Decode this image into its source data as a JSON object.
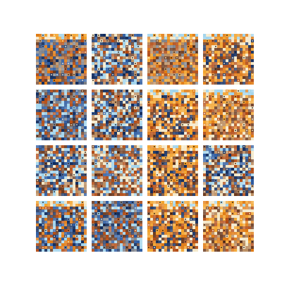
{
  "figure": {
    "rows": 4,
    "cols": 4,
    "background": "#ffffff",
    "palette": {
      "navy": "#0f2a5c",
      "blue": "#2b5aa0",
      "sky": "#9fd3ec",
      "cream": "#f3e6c4",
      "tan": "#b98a5c",
      "brown": "#6b3a1f",
      "rust": "#b24a12",
      "orange": "#e07a12",
      "amber": "#f2a22a",
      "gray": "#7a7e86"
    },
    "samples": [
      {
        "tone": "warm-top-band-blue-mix"
      },
      {
        "tone": "sky-blue-brown"
      },
      {
        "tone": "orange-band-brown"
      },
      {
        "tone": "orange-dominant"
      },
      {
        "tone": "blue-dominant"
      },
      {
        "tone": "sky-blue-brown"
      },
      {
        "tone": "orange-yellow-top"
      },
      {
        "tone": "orange-brown-warm"
      },
      {
        "tone": "sky-blue-brown"
      },
      {
        "tone": "tan-brown-blue"
      },
      {
        "tone": "orange-dominant"
      },
      {
        "tone": "sky-blue-brown"
      },
      {
        "tone": "blue-orange-mix"
      },
      {
        "tone": "blue-dominant"
      },
      {
        "tone": "orange-yellow-top"
      },
      {
        "tone": "orange-brown-warm"
      }
    ]
  }
}
